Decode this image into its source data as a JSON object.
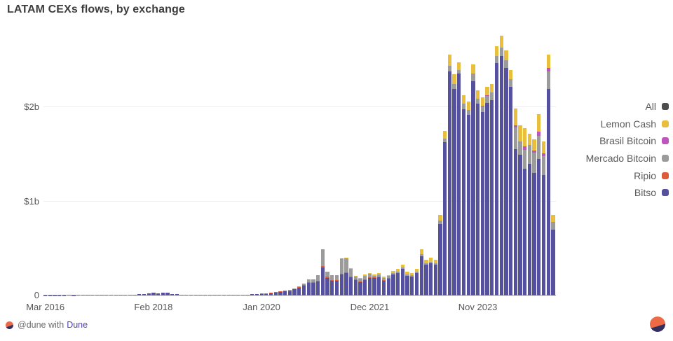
{
  "title": "LATAM CEXs flows, by exchange",
  "footer": {
    "attribution_prefix": "@dune with",
    "attribution_link": "Dune",
    "logo_icon": "dune-logo",
    "watermark_icon": "dune-logo"
  },
  "colors": {
    "background": "#ffffff",
    "title_text": "#3d3d3d",
    "axis_text": "#565656",
    "legend_text": "#5a5a5a",
    "gridline": "#efeff1",
    "baseline": "#8f8f8f",
    "link": "#4b41b0",
    "logo_orange": "#ed6a45",
    "logo_navy": "#332f5e"
  },
  "chart_data": {
    "type": "bar",
    "stacked": true,
    "title": "LATAM CEXs flows, by exchange",
    "xlabel": "",
    "ylabel": "",
    "unit": "USD billions",
    "x_start_month": "Mar 2016",
    "x_frequency": "monthly",
    "ylim": [
      0,
      2.815
    ],
    "grid": "horizontal",
    "y_ticks": [
      {
        "label": "0",
        "value": 0
      },
      {
        "label": "$1b",
        "value": 1
      },
      {
        "label": "$2b",
        "value": 2
      }
    ],
    "x_ticks": [
      {
        "label": "Mar 2016",
        "index": 0
      },
      {
        "label": "Feb 2018",
        "index": 23
      },
      {
        "label": "Jan 2020",
        "index": 46
      },
      {
        "label": "Dec 2021",
        "index": 69
      },
      {
        "label": "Nov 2023",
        "index": 92
      }
    ],
    "legend": {
      "position": "right",
      "items": [
        {
          "label": "All",
          "color": "#4d4d4d"
        },
        {
          "label": "Lemon Cash",
          "color": "#e9be3d"
        },
        {
          "label": "Brasil Bitcoin",
          "color": "#be54be"
        },
        {
          "label": "Mercado Bitcoin",
          "color": "#9b9b9b"
        },
        {
          "label": "Ripio",
          "color": "#dd5b39"
        },
        {
          "label": "Bitso",
          "color": "#55519f"
        }
      ]
    },
    "series": [
      {
        "name": "Bitso",
        "color": "#55519f",
        "values": [
          0.003,
          0.002,
          0.003,
          0.002,
          0.003,
          0.004,
          0.003,
          0.004,
          0.005,
          0.004,
          0.005,
          0.005,
          0.005,
          0.006,
          0.005,
          0.006,
          0.007,
          0.006,
          0.008,
          0.009,
          0.012,
          0.015,
          0.022,
          0.028,
          0.022,
          0.032,
          0.028,
          0.018,
          0.014,
          0.01,
          0.008,
          0.008,
          0.007,
          0.008,
          0.008,
          0.009,
          0.008,
          0.009,
          0.008,
          0.01,
          0.009,
          0.01,
          0.011,
          0.01,
          0.012,
          0.014,
          0.016,
          0.019,
          0.024,
          0.03,
          0.038,
          0.044,
          0.05,
          0.065,
          0.08,
          0.105,
          0.135,
          0.135,
          0.15,
          0.3,
          0.19,
          0.16,
          0.16,
          0.22,
          0.24,
          0.195,
          0.165,
          0.145,
          0.17,
          0.19,
          0.19,
          0.2,
          0.165,
          0.185,
          0.225,
          0.24,
          0.28,
          0.21,
          0.2,
          0.235,
          0.42,
          0.325,
          0.34,
          0.325,
          0.76,
          1.63,
          2.38,
          2.2,
          2.36,
          1.98,
          1.92,
          2.28,
          2.04,
          1.95,
          2.05,
          2.08,
          2.47,
          2.55,
          2.42,
          2.22,
          1.56,
          1.5,
          1.35,
          1.4,
          1.3,
          1.45,
          1.28,
          2.2,
          0.7
        ]
      },
      {
        "name": "Ripio",
        "color": "#dd5b39",
        "values": [
          0,
          0,
          0,
          0,
          0,
          0,
          0,
          0,
          0,
          0,
          0,
          0,
          0,
          0,
          0,
          0,
          0,
          0,
          0,
          0,
          0,
          0,
          0,
          0,
          0,
          0,
          0,
          0,
          0,
          0,
          0,
          0,
          0,
          0,
          0,
          0,
          0,
          0,
          0,
          0,
          0,
          0,
          0,
          0,
          0,
          0,
          0.003,
          0.004,
          0.004,
          0.005,
          0.006,
          0.006,
          0.005,
          0.006,
          0.008,
          0.008,
          0.01,
          0.01,
          0.01,
          0.01,
          0.008,
          0.007,
          0.007,
          0.01,
          0.006,
          0.005,
          0.004,
          0.004,
          0.004,
          0.004,
          0.003,
          0.003,
          0.002,
          0.002,
          0,
          0,
          0,
          0,
          0,
          0,
          0,
          0,
          0,
          0,
          0,
          0,
          0,
          0,
          0,
          0,
          0,
          0,
          0,
          0,
          0,
          0,
          0,
          0,
          0,
          0,
          0,
          0,
          0,
          0,
          0,
          0,
          0,
          0,
          0
        ]
      },
      {
        "name": "Mercado Bitcoin",
        "color": "#9b9b9b",
        "values": [
          0,
          0,
          0,
          0,
          0,
          0,
          0,
          0,
          0,
          0,
          0,
          0,
          0,
          0,
          0,
          0,
          0,
          0,
          0,
          0,
          0,
          0,
          0,
          0,
          0,
          0,
          0,
          0,
          0,
          0,
          0,
          0,
          0,
          0,
          0,
          0,
          0,
          0,
          0,
          0,
          0,
          0,
          0,
          0,
          0,
          0,
          0,
          0,
          0,
          0,
          0,
          0,
          0.004,
          0.006,
          0.008,
          0.012,
          0.03,
          0.03,
          0.055,
          0.185,
          0.055,
          0.048,
          0.048,
          0.165,
          0.15,
          0.085,
          0.036,
          0.033,
          0.035,
          0.035,
          0.012,
          0.017,
          0.018,
          0.018,
          0.015,
          0.015,
          0.02,
          0.015,
          0.015,
          0.015,
          0.02,
          0.02,
          0.02,
          0.02,
          0.04,
          0.04,
          0.06,
          0.05,
          0.04,
          0.06,
          0.05,
          0.08,
          0.05,
          0.06,
          0.07,
          0.08,
          0.08,
          0.09,
          0.08,
          0.08,
          0.23,
          0.14,
          0.2,
          0.2,
          0.22,
          0.25,
          0.2,
          0.18,
          0.08
        ]
      },
      {
        "name": "Brasil Bitcoin",
        "color": "#be54be",
        "values": [
          0,
          0,
          0,
          0,
          0,
          0,
          0,
          0,
          0,
          0,
          0,
          0,
          0,
          0,
          0,
          0,
          0,
          0,
          0,
          0,
          0,
          0,
          0,
          0,
          0,
          0,
          0,
          0,
          0,
          0,
          0,
          0,
          0,
          0,
          0,
          0,
          0,
          0,
          0,
          0,
          0,
          0,
          0,
          0,
          0,
          0,
          0,
          0,
          0,
          0,
          0,
          0,
          0,
          0,
          0,
          0,
          0,
          0,
          0,
          0,
          0,
          0,
          0,
          0,
          0,
          0,
          0,
          0,
          0,
          0,
          0,
          0,
          0,
          0,
          0,
          0,
          0,
          0,
          0,
          0,
          0,
          0,
          0,
          0,
          0,
          0,
          0,
          0,
          0,
          0,
          0,
          0,
          0,
          0.01,
          0.01,
          0,
          0,
          0,
          0,
          0,
          0.02,
          0,
          0.04,
          0,
          0.02,
          0.04,
          0.03,
          0.04,
          0
        ]
      },
      {
        "name": "Lemon Cash",
        "color": "#e9be3d",
        "values": [
          0,
          0,
          0,
          0,
          0,
          0,
          0,
          0,
          0,
          0,
          0,
          0,
          0,
          0,
          0,
          0,
          0,
          0,
          0,
          0,
          0,
          0,
          0,
          0,
          0,
          0,
          0,
          0,
          0,
          0,
          0,
          0,
          0,
          0,
          0,
          0,
          0,
          0,
          0,
          0,
          0,
          0,
          0,
          0,
          0,
          0,
          0,
          0,
          0,
          0,
          0,
          0,
          0,
          0,
          0,
          0,
          0,
          0,
          0,
          0,
          0,
          0,
          0,
          0,
          0.004,
          0.005,
          0.005,
          0.008,
          0.011,
          0.011,
          0.015,
          0.02,
          0.015,
          0.013,
          0.02,
          0.025,
          0.03,
          0.025,
          0.025,
          0.03,
          0.05,
          0.035,
          0.04,
          0.035,
          0.06,
          0.08,
          0.12,
          0.1,
          0.08,
          0.09,
          0.09,
          0.1,
          0.09,
          0.085,
          0.09,
          0.09,
          0.1,
          0.12,
          0.11,
          0.1,
          0.18,
          0.17,
          0.19,
          0.12,
          0.12,
          0.19,
          0.13,
          0.14,
          0.08
        ]
      }
    ]
  }
}
